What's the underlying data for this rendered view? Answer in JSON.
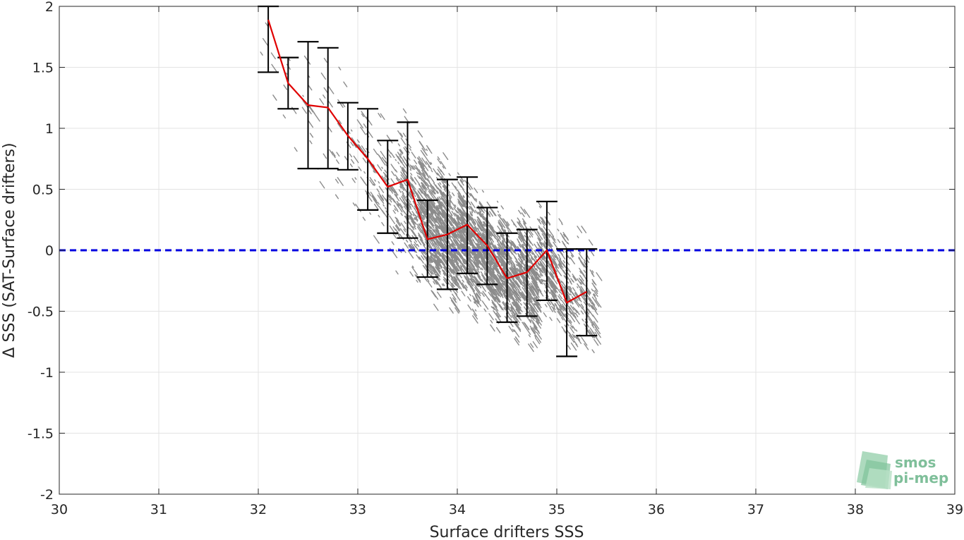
{
  "chart_data": {
    "type": "scatter",
    "title": "",
    "xlabel": "Surface drifters SSS",
    "ylabel": "Δ SSS (SAT-Surface drifters)",
    "xlim": [
      30,
      39
    ],
    "ylim": [
      -2,
      2
    ],
    "x_ticks": [
      "30",
      "31",
      "32",
      "33",
      "34",
      "35",
      "36",
      "37",
      "38",
      "39"
    ],
    "y_ticks": [
      "2",
      "1.5",
      "1",
      "0.5",
      "0",
      "-0.5",
      "-1",
      "-1.5",
      "-2"
    ],
    "grid": true,
    "reference_line": {
      "y": 0,
      "style": "dashed",
      "color": "#0000e0"
    },
    "mean_line": {
      "color": "#e00000",
      "x": [
        32.1,
        32.3,
        32.5,
        32.7,
        32.9,
        33.1,
        33.3,
        33.5,
        33.7,
        33.9,
        34.1,
        34.3,
        34.5,
        34.7,
        34.9,
        35.1,
        35.3
      ],
      "y": [
        1.89,
        1.37,
        1.19,
        1.17,
        0.94,
        0.75,
        0.52,
        0.58,
        0.09,
        0.13,
        0.21,
        0.04,
        -0.23,
        -0.18,
        0.0,
        -0.43,
        -0.34
      ]
    },
    "error_bars": {
      "color": "#000000",
      "x": [
        32.1,
        32.3,
        32.5,
        32.7,
        32.9,
        33.1,
        33.3,
        33.5,
        33.7,
        33.9,
        34.1,
        34.3,
        34.5,
        34.7,
        34.9,
        35.1,
        35.3
      ],
      "low": [
        1.46,
        1.16,
        0.67,
        0.67,
        0.66,
        0.33,
        0.14,
        0.1,
        -0.22,
        -0.32,
        -0.19,
        -0.28,
        -0.59,
        -0.54,
        -0.41,
        -0.87,
        -0.7
      ],
      "high": [
        2.0,
        1.58,
        1.71,
        1.66,
        1.21,
        1.16,
        0.9,
        1.05,
        0.41,
        0.58,
        0.6,
        0.35,
        0.14,
        0.17,
        0.4,
        0.01,
        0.01
      ]
    },
    "scatter_cloud": {
      "color": "#8c8c8c",
      "bins": [
        {
          "x": 32.1,
          "center": 1.45,
          "spread": 0.45,
          "count": 6
        },
        {
          "x": 32.3,
          "center": 1.3,
          "spread": 0.35,
          "count": 8
        },
        {
          "x": 32.5,
          "center": 1.1,
          "spread": 0.45,
          "count": 14
        },
        {
          "x": 32.7,
          "center": 1.0,
          "spread": 0.45,
          "count": 20
        },
        {
          "x": 32.9,
          "center": 0.9,
          "spread": 0.35,
          "count": 25
        },
        {
          "x": 33.1,
          "center": 0.7,
          "spread": 0.4,
          "count": 45
        },
        {
          "x": 33.3,
          "center": 0.5,
          "spread": 0.4,
          "count": 90
        },
        {
          "x": 33.5,
          "center": 0.45,
          "spread": 0.42,
          "count": 200
        },
        {
          "x": 33.7,
          "center": 0.25,
          "spread": 0.4,
          "count": 420
        },
        {
          "x": 33.9,
          "center": 0.12,
          "spread": 0.38,
          "count": 460
        },
        {
          "x": 34.1,
          "center": 0.05,
          "spread": 0.36,
          "count": 440
        },
        {
          "x": 34.3,
          "center": -0.05,
          "spread": 0.34,
          "count": 400
        },
        {
          "x": 34.5,
          "center": -0.18,
          "spread": 0.34,
          "count": 380
        },
        {
          "x": 34.7,
          "center": -0.2,
          "spread": 0.34,
          "count": 340
        },
        {
          "x": 34.9,
          "center": -0.12,
          "spread": 0.32,
          "count": 220
        },
        {
          "x": 35.1,
          "center": -0.35,
          "spread": 0.35,
          "count": 160
        },
        {
          "x": 35.3,
          "center": -0.35,
          "spread": 0.35,
          "count": 110
        }
      ]
    }
  },
  "logo": {
    "line1": "smos",
    "line2": "pi-mep"
  }
}
